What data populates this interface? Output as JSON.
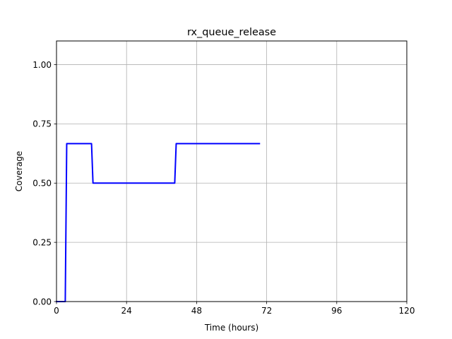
{
  "chart_data": {
    "type": "line",
    "title": "rx_queue_release",
    "xlabel": "Time (hours)",
    "ylabel": "Coverage",
    "xlim": [
      0,
      120
    ],
    "ylim": [
      0,
      1.1
    ],
    "xticks": [
      0,
      24,
      48,
      72,
      96,
      120
    ],
    "xtick_labels": [
      "0",
      "24",
      "48",
      "72",
      "96",
      "120"
    ],
    "yticks": [
      0.0,
      0.25,
      0.5,
      0.75,
      1.0
    ],
    "ytick_labels": [
      "0.00",
      "0.25",
      "0.50",
      "0.75",
      "1.00"
    ],
    "grid": true,
    "series": [
      {
        "color": "#0000ff",
        "x": [
          0,
          3,
          3.5,
          12,
          12.5,
          40.5,
          41,
          69.5
        ],
        "y": [
          0,
          0,
          0.6667,
          0.6667,
          0.5,
          0.5,
          0.6667,
          0.6667
        ]
      }
    ]
  }
}
